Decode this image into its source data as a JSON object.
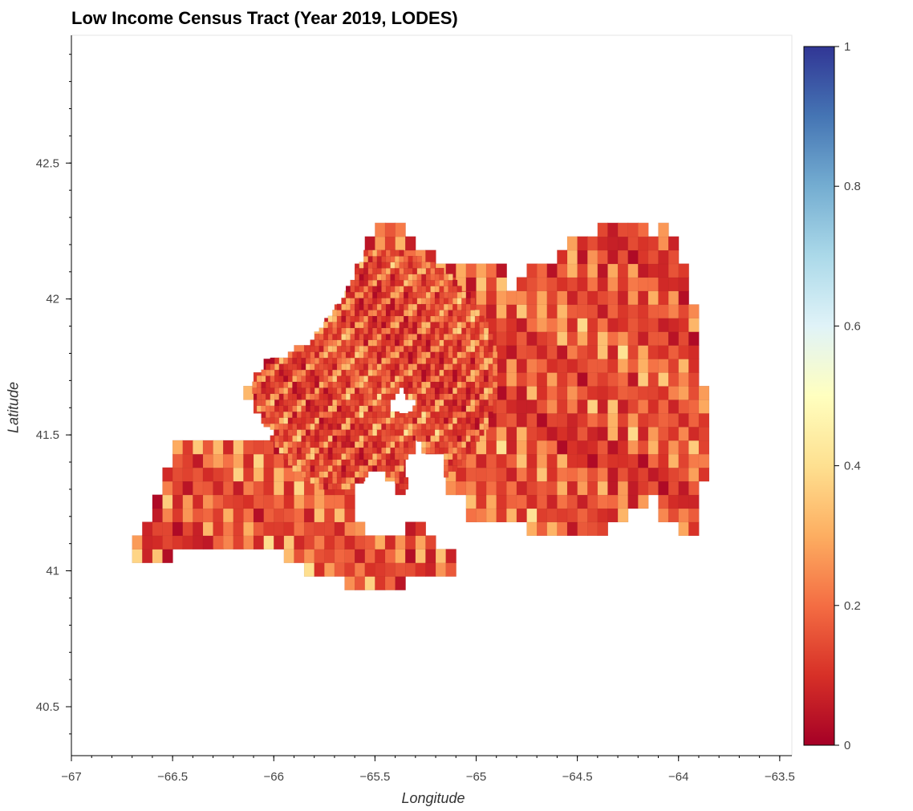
{
  "chart_data": {
    "type": "choropleth",
    "title": "Low Income Census Tract (Year 2019, LODES)",
    "xlabel": "Longitude",
    "ylabel": "Latitude",
    "xlim": [
      -67,
      -63.44
    ],
    "ylim": [
      40.32,
      42.97
    ],
    "x_ticks": [
      -67,
      -66.5,
      -66,
      -65.5,
      -65,
      -64.5,
      -64,
      -63.5
    ],
    "x_tick_labels": [
      "−67",
      "−66.5",
      "−66",
      "−65.5",
      "−65",
      "−64.5",
      "−64",
      "−63.5"
    ],
    "y_ticks": [
      40.5,
      41,
      41.5,
      42,
      42.5
    ],
    "y_tick_labels": [
      "40.5",
      "41",
      "41.5",
      "42",
      "42.5"
    ],
    "colorbar": {
      "colormap": "RdYlBu",
      "range": [
        0,
        1
      ],
      "ticks": [
        0,
        0.2,
        0.4,
        0.6,
        0.8,
        1
      ],
      "tick_labels": [
        "0",
        "0.2",
        "0.4",
        "0.6",
        "0.8",
        "1"
      ],
      "colors": [
        "#a50026",
        "#d73027",
        "#f46d43",
        "#fdae61",
        "#fee090",
        "#ffffbf",
        "#e0f3f8",
        "#abd9e9",
        "#74add1",
        "#4575b4",
        "#313695"
      ]
    },
    "grid": false
  }
}
